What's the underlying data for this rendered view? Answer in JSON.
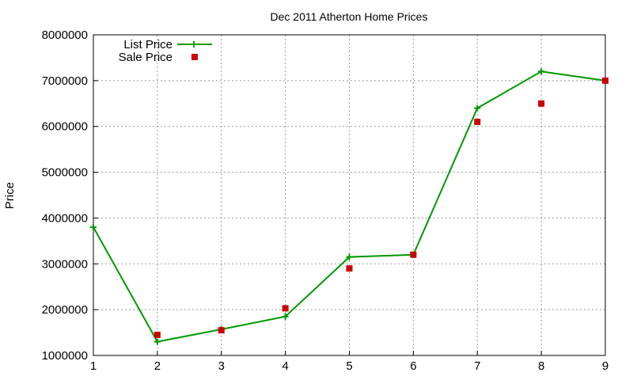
{
  "chart_data": {
    "type": "line",
    "title": "Dec 2011 Atherton Home Prices",
    "xlabel": "",
    "ylabel": "Price",
    "xlim": [
      1,
      9
    ],
    "ylim": [
      1000000,
      8000000
    ],
    "x_ticks": [
      "1",
      "2",
      "3",
      "4",
      "5",
      "6",
      "7",
      "8",
      "9"
    ],
    "y_ticks": [
      "1000000",
      "2000000",
      "3000000",
      "4000000",
      "5000000",
      "6000000",
      "7000000",
      "8000000"
    ],
    "grid": true,
    "legend_position": "top-left",
    "series": [
      {
        "name": "List Price",
        "style": "line-with-plus-markers",
        "color": "#009900",
        "x": [
          1,
          2,
          3,
          4,
          5,
          6,
          7,
          8,
          9
        ],
        "y": [
          3800000,
          1300000,
          1570000,
          1850000,
          3150000,
          3200000,
          6400000,
          7200000,
          7000000
        ]
      },
      {
        "name": "Sale Price",
        "style": "square-points",
        "color": "#cc0000",
        "x": [
          2,
          3,
          4,
          5,
          6,
          7,
          8,
          9
        ],
        "y": [
          1450000,
          1550000,
          2030000,
          2900000,
          3200000,
          6100000,
          6500000,
          7000000
        ]
      }
    ]
  }
}
